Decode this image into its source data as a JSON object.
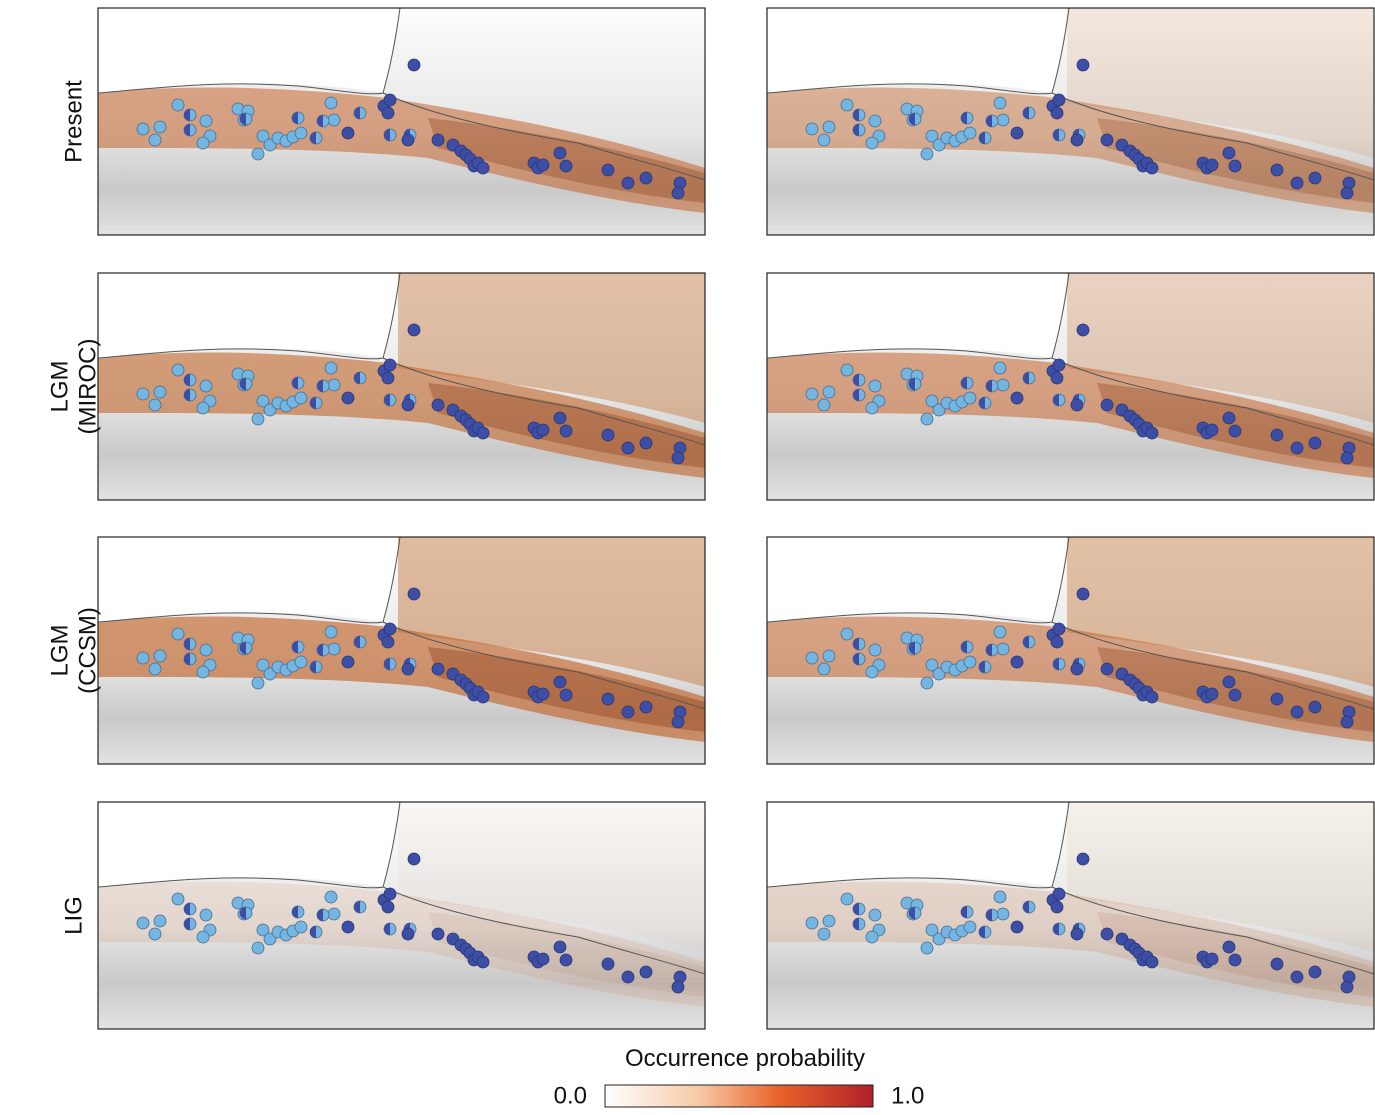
{
  "rows": [
    {
      "label": [
        "Present"
      ]
    },
    {
      "label": [
        "LGM",
        "(MIROC)"
      ]
    },
    {
      "label": [
        "LGM",
        "(CCSM)"
      ]
    },
    {
      "label": [
        "LIG"
      ]
    }
  ],
  "colorbar": {
    "title": "Occurrence probability",
    "lim": [
      0,
      1
    ],
    "ticks": [
      {
        "value": 0,
        "label": "0.0"
      },
      {
        "value": 1,
        "label": "1.0"
      }
    ]
  }
}
